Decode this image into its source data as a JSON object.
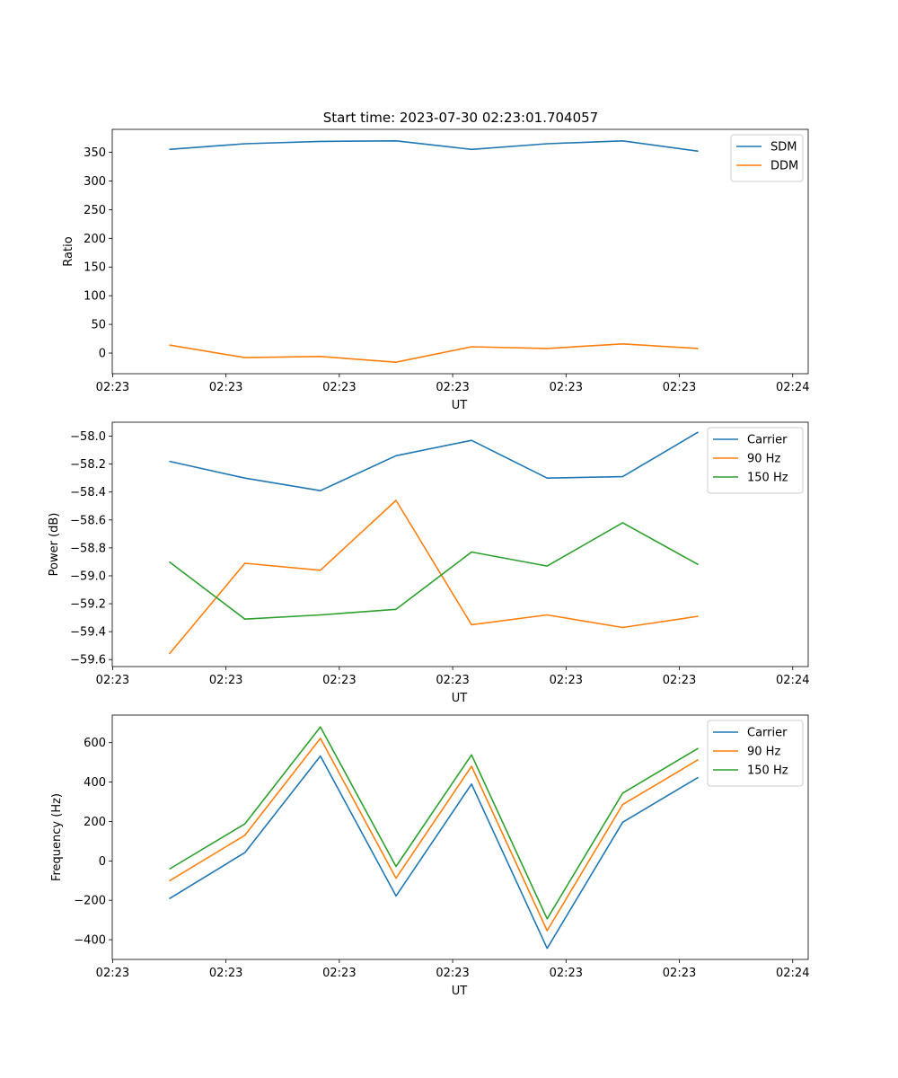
{
  "title": "Start time: 2023-07-30 02:23:01.704057",
  "colors": {
    "blue": "#1f77b4",
    "orange": "#ff7f0e",
    "green": "#2ca02c"
  },
  "chart_data": [
    {
      "type": "line",
      "title": "Start time: 2023-07-30 02:23:01.704057",
      "xlabel": "UT",
      "ylabel": "Ratio",
      "xlim": [
        -0.755,
        8.455
      ],
      "ylim": [
        -36,
        390
      ],
      "x": [
        0,
        1,
        2,
        3,
        4,
        5,
        6,
        7
      ],
      "xticks": [
        -0.75,
        0.75,
        2.25,
        3.75,
        5.25,
        6.75,
        8.25
      ],
      "xtick_labels": [
        "02:23",
        "02:23",
        "02:23",
        "02:23",
        "02:23",
        "02:23",
        "02:24"
      ],
      "yticks": [
        0,
        50,
        100,
        150,
        200,
        250,
        300,
        350
      ],
      "ytick_labels": [
        "0",
        "50",
        "100",
        "150",
        "200",
        "250",
        "300",
        "350"
      ],
      "legend_position": "upper-right",
      "series": [
        {
          "name": "SDM",
          "color": "#1f77b4",
          "values": [
            355,
            365,
            369,
            370,
            355,
            365,
            370,
            352
          ]
        },
        {
          "name": "DDM",
          "color": "#ff7f0e",
          "values": [
            14,
            -8,
            -6,
            -16,
            11,
            8,
            16,
            8
          ]
        }
      ]
    },
    {
      "type": "line",
      "xlabel": "UT",
      "ylabel": "Power (dB)",
      "xlim": [
        -0.755,
        8.455
      ],
      "ylim": [
        -59.65,
        -57.9
      ],
      "x": [
        0,
        1,
        2,
        3,
        4,
        5,
        6,
        7
      ],
      "xticks": [
        -0.75,
        0.75,
        2.25,
        3.75,
        5.25,
        6.75,
        8.25
      ],
      "xtick_labels": [
        "02:23",
        "02:23",
        "02:23",
        "02:23",
        "02:23",
        "02:23",
        "02:24"
      ],
      "yticks": [
        -58.0,
        -58.2,
        -58.4,
        -58.6,
        -58.8,
        -59.0,
        -59.2,
        -59.4,
        -59.6
      ],
      "ytick_labels": [
        "−58.0",
        "−58.2",
        "−58.4",
        "−58.6",
        "−58.8",
        "−59.0",
        "−59.2",
        "−59.4",
        "−59.6"
      ],
      "legend_position": "upper-right",
      "series": [
        {
          "name": "Carrier",
          "color": "#1f77b4",
          "values": [
            -58.18,
            -58.3,
            -58.39,
            -58.14,
            -58.03,
            -58.3,
            -58.29,
            -57.97
          ]
        },
        {
          "name": "90 Hz",
          "color": "#ff7f0e",
          "values": [
            -59.56,
            -58.91,
            -58.96,
            -58.46,
            -59.35,
            -59.28,
            -59.37,
            -59.29
          ]
        },
        {
          "name": "150 Hz",
          "color": "#2ca02c",
          "values": [
            -58.9,
            -59.31,
            -59.28,
            -59.24,
            -58.83,
            -58.93,
            -58.62,
            -58.92
          ]
        }
      ]
    },
    {
      "type": "line",
      "xlabel": "UT",
      "ylabel": "Frequency (Hz)",
      "xlim": [
        -0.755,
        8.455
      ],
      "ylim": [
        -500,
        740
      ],
      "x": [
        0,
        1,
        2,
        3,
        4,
        5,
        6,
        7
      ],
      "xticks": [
        -0.75,
        0.75,
        2.25,
        3.75,
        5.25,
        6.75,
        8.25
      ],
      "xtick_labels": [
        "02:23",
        "02:23",
        "02:23",
        "02:23",
        "02:23",
        "02:23",
        "02:24"
      ],
      "yticks": [
        -400,
        -200,
        0,
        200,
        400,
        600
      ],
      "ytick_labels": [
        "−400",
        "−200",
        "0",
        "200",
        "400",
        "600"
      ],
      "legend_position": "upper-right",
      "series": [
        {
          "name": "Carrier",
          "color": "#1f77b4",
          "values": [
            -192,
            42,
            532,
            -178,
            390,
            -444,
            196,
            424
          ]
        },
        {
          "name": "90 Hz",
          "color": "#ff7f0e",
          "values": [
            -102,
            130,
            622,
            -88,
            480,
            -354,
            286,
            514
          ]
        },
        {
          "name": "150 Hz",
          "color": "#2ca02c",
          "values": [
            -42,
            188,
            680,
            -28,
            538,
            -294,
            344,
            572
          ]
        }
      ]
    }
  ]
}
